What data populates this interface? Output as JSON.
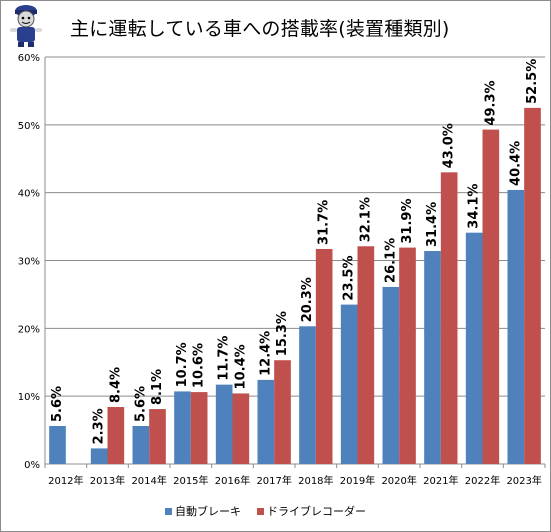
{
  "colors": {
    "series1": "#4f81bd",
    "series2": "#c0504d",
    "grid": "#8c8c8c",
    "axis": "#8c8c8c"
  },
  "mascot_icon": "mascot-character-icon",
  "chart_data": {
    "type": "bar",
    "title": "主に運転している車への搭載率(装置種類別)",
    "categories": [
      "2012年",
      "2013年",
      "2014年",
      "2015年",
      "2016年",
      "2017年",
      "2018年",
      "2019年",
      "2020年",
      "2021年",
      "2022年",
      "2023年"
    ],
    "series": [
      {
        "name": "自動ブレーキ",
        "values": [
          5.6,
          2.3,
          5.6,
          10.7,
          11.7,
          12.4,
          20.3,
          23.5,
          26.1,
          31.4,
          34.1,
          40.4
        ],
        "labels": [
          "5.6%",
          "2.3%",
          "5.6%",
          "10.7%",
          "11.7%",
          "12.4%",
          "20.3%",
          "23.5%",
          "26.1%",
          "31.4%",
          "34.1%",
          "40.4%"
        ]
      },
      {
        "name": "ドライブレコーダー",
        "values": [
          null,
          8.4,
          8.1,
          10.6,
          10.4,
          15.3,
          31.7,
          32.1,
          31.9,
          43.0,
          49.3,
          52.5
        ],
        "labels": [
          "",
          "8.4%",
          "8.1%",
          "10.6%",
          "10.4%",
          "15.3%",
          "31.7%",
          "32.1%",
          "31.9%",
          "43.0%",
          "49.3%",
          "52.5%"
        ]
      }
    ],
    "yticks": [
      "0%",
      "10%",
      "20%",
      "30%",
      "40%",
      "50%",
      "60%"
    ],
    "ylim": [
      0,
      60
    ],
    "grid": true,
    "legend": "bottom"
  }
}
